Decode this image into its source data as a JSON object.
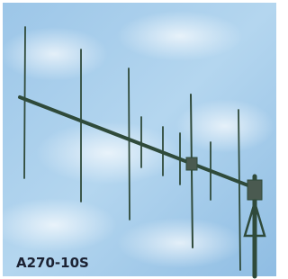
{
  "caption": "A270-10S"
}
